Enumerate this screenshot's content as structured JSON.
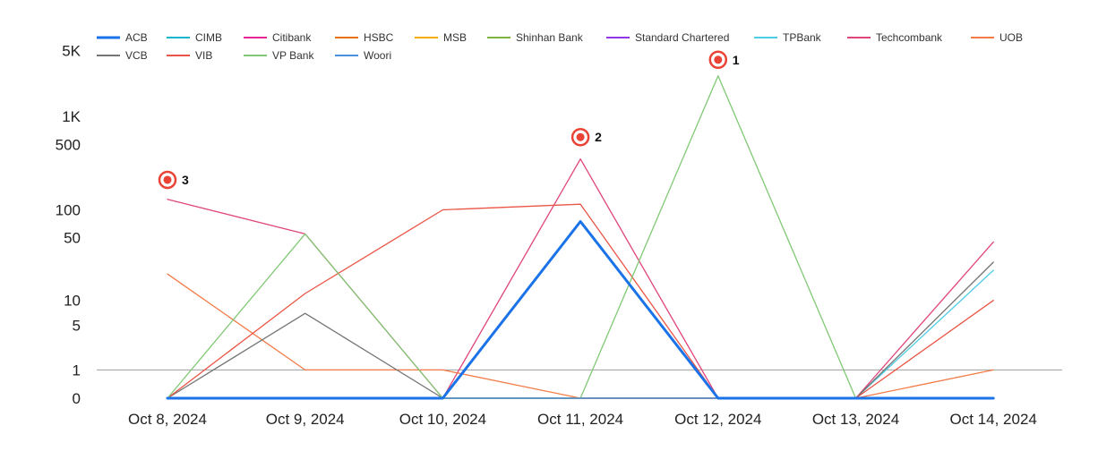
{
  "chart_data": {
    "type": "line",
    "categories": [
      "Oct 8, 2024",
      "Oct 9, 2024",
      "Oct 10, 2024",
      "Oct 11, 2024",
      "Oct 12, 2024",
      "Oct 13, 2024",
      "Oct 14, 2024"
    ],
    "yscale": "log1p",
    "ylim": [
      0,
      5000
    ],
    "yticks": [
      {
        "value": 0,
        "label": "0"
      },
      {
        "value": 1,
        "label": "1"
      },
      {
        "value": 5,
        "label": "5"
      },
      {
        "value": 10,
        "label": "10"
      },
      {
        "value": 50,
        "label": "50"
      },
      {
        "value": 100,
        "label": "100"
      },
      {
        "value": 500,
        "label": "500"
      },
      {
        "value": 1000,
        "label": "1K"
      },
      {
        "value": 5000,
        "label": "5K"
      }
    ],
    "reference_line": 1,
    "legend_position": "top",
    "series": [
      {
        "name": "ACB",
        "color": "#1a73e8",
        "emphasis": true,
        "values": [
          0,
          0,
          0,
          75,
          0,
          0,
          0
        ]
      },
      {
        "name": "CIMB",
        "color": "#12b5cb",
        "values": [
          0,
          0,
          0,
          0,
          0,
          0,
          0
        ]
      },
      {
        "name": "Citibank",
        "color": "#e52592",
        "values": [
          0,
          0,
          0,
          0,
          0,
          0,
          0
        ]
      },
      {
        "name": "HSBC",
        "color": "#e8710a",
        "values": [
          0,
          0,
          0,
          0,
          0,
          0,
          0
        ]
      },
      {
        "name": "MSB",
        "color": "#f9ab00",
        "values": [
          0,
          0,
          0,
          0,
          0,
          0,
          0
        ]
      },
      {
        "name": "Shinhan Bank",
        "color": "#7cb342",
        "values": [
          0,
          0,
          0,
          0,
          0,
          0,
          0
        ]
      },
      {
        "name": "Standard Chartered",
        "color": "#9334e6",
        "values": [
          0,
          0,
          0,
          0,
          0,
          0,
          0
        ]
      },
      {
        "name": "TPBank",
        "color": "#4ecde6",
        "values": [
          0,
          0,
          0,
          0,
          0,
          0,
          22
        ]
      },
      {
        "name": "Techcombank",
        "color": "#e0457b",
        "values": [
          130,
          55,
          0,
          350,
          0,
          0,
          45
        ]
      },
      {
        "name": "UOB",
        "color": "#f37b47",
        "values": [
          20,
          1,
          1,
          0,
          0,
          0,
          1
        ]
      },
      {
        "name": "VCB",
        "color": "#757575",
        "values": [
          0,
          7,
          0,
          0,
          0,
          0,
          27
        ]
      },
      {
        "name": "VIB",
        "color": "#ea5545",
        "values": [
          0,
          12,
          100,
          115,
          0,
          0,
          10
        ]
      },
      {
        "name": "VP Bank",
        "color": "#80c974",
        "values": [
          0,
          55,
          0,
          0,
          2700,
          0,
          0
        ]
      },
      {
        "name": "Woori",
        "color": "#4a90e2",
        "values": [
          0,
          0,
          0,
          0,
          0,
          0,
          0
        ]
      }
    ],
    "annotations": [
      {
        "label": "1",
        "category": "Oct 12, 2024",
        "value": 4000
      },
      {
        "label": "2",
        "category": "Oct 11, 2024",
        "value": 600
      },
      {
        "label": "3",
        "category": "Oct 8, 2024",
        "value": 210
      }
    ]
  }
}
